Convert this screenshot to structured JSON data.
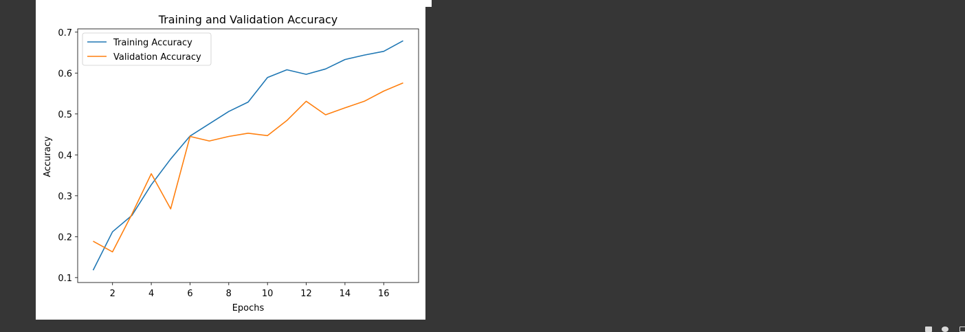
{
  "chart_data": {
    "type": "line",
    "title": "Training and Validation Accuracy",
    "xlabel": "Epochs",
    "ylabel": "Accuracy",
    "xlim": [
      0.2,
      17.8
    ],
    "ylim": [
      0.088,
      0.708
    ],
    "xticks": [
      2,
      4,
      6,
      8,
      10,
      12,
      14,
      16
    ],
    "yticks": [
      0.1,
      0.2,
      0.3,
      0.4,
      0.5,
      0.6,
      0.7
    ],
    "ytick_labels": [
      "0.1",
      "0.2",
      "0.3",
      "0.4",
      "0.5",
      "0.6",
      "0.7"
    ],
    "x": [
      1,
      2,
      3,
      4,
      5,
      6,
      7,
      8,
      9,
      10,
      11,
      12,
      13,
      14,
      15,
      16,
      17
    ],
    "legend_position": "upper-left",
    "grid": false,
    "series": [
      {
        "name": "Training Accuracy",
        "color": "#1f77b4",
        "values": [
          0.118,
          0.212,
          0.252,
          0.327,
          0.39,
          0.446,
          0.476,
          0.506,
          0.529,
          0.589,
          0.608,
          0.597,
          0.61,
          0.633,
          0.644,
          0.653,
          0.679
        ]
      },
      {
        "name": "Validation Accuracy",
        "color": "#ff7f0e",
        "values": [
          0.189,
          0.163,
          0.255,
          0.354,
          0.268,
          0.445,
          0.434,
          0.445,
          0.453,
          0.447,
          0.484,
          0.531,
          0.498,
          0.515,
          0.531,
          0.556,
          0.576
        ]
      }
    ]
  }
}
